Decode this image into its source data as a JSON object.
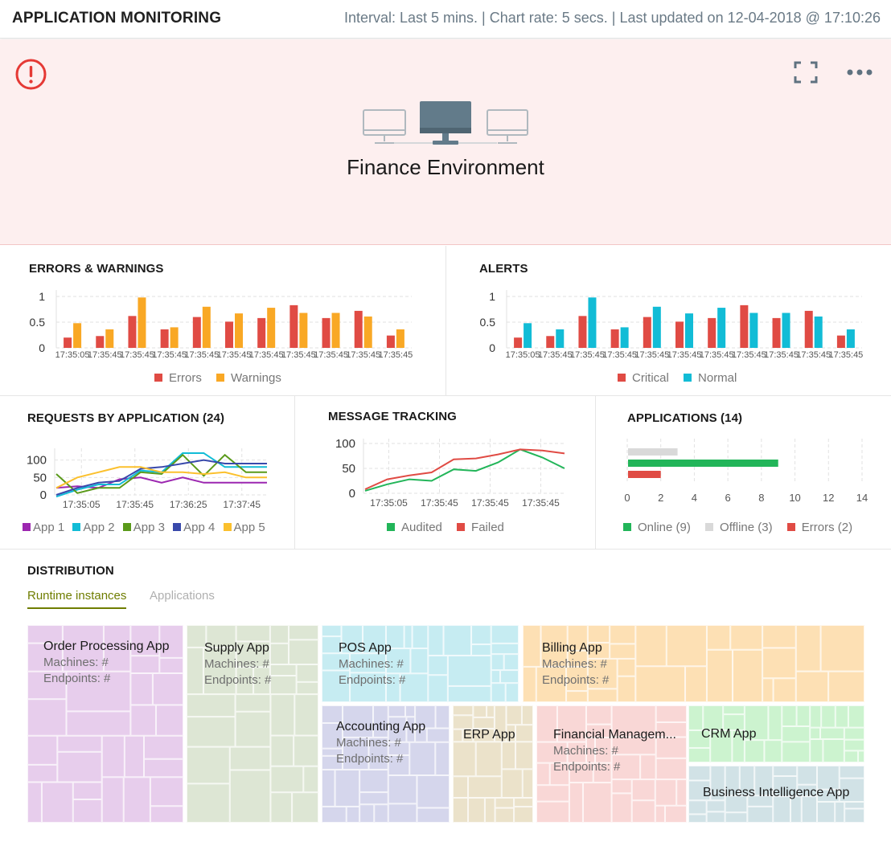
{
  "header": {
    "title": "APPLICATION MONITORING",
    "status": "Interval: Last 5 mins. | Chart rate: 5 secs. | Last updated on 12-04-2018 @ 17:10:26"
  },
  "hero": {
    "title": "Finance Environment",
    "alert_icon": "alert-circle-icon",
    "fullscreen_icon": "fullscreen-icon",
    "more_icon": "more-horizontal-icon",
    "background": "#fdefef"
  },
  "colors": {
    "red": "#e04b44",
    "orange": "#f9a825",
    "cyan": "#12bcd6",
    "green": "#22b559",
    "gray": "#d9d9d9",
    "purple": "#9c27b0",
    "app3": "#5a9a1a",
    "app4": "#3949ab",
    "app5": "#fbc02d",
    "olive": "#6f7d00"
  },
  "panels": {
    "errors_warnings": "ERRORS & WARNINGS",
    "alerts": "ALERTS",
    "requests": "REQUESTS BY APPLICATION (24)",
    "messages": "MESSAGE TRACKING",
    "applications": "APPLICATIONS (14)",
    "distribution": "DISTRIBUTION"
  },
  "chart_data": [
    {
      "id": "errors_warnings",
      "type": "bar",
      "categories": [
        "17:35:05",
        "17:35:45",
        "17:35:45",
        "17:35:45",
        "17:35:45",
        "17:35:45",
        "17:35:45",
        "17:35:45",
        "17:35:45",
        "17:35:45",
        "17:35:45"
      ],
      "ylim": [
        0,
        1
      ],
      "yticks": [
        "0",
        "0.5",
        "1"
      ],
      "series": [
        {
          "name": "Errors",
          "color": "#e04b44",
          "values": [
            0.2,
            0.23,
            0.62,
            0.36,
            0.6,
            0.51,
            0.58,
            0.83,
            0.58,
            0.72,
            0.24
          ]
        },
        {
          "name": "Warnings",
          "color": "#f9a825",
          "values": [
            0.48,
            0.36,
            0.98,
            0.4,
            0.8,
            0.67,
            0.78,
            0.68,
            0.68,
            0.61,
            0.36
          ]
        }
      ],
      "legend": "bottom"
    },
    {
      "id": "alerts",
      "type": "bar",
      "categories": [
        "17:35:05",
        "17:35:45",
        "17:35:45",
        "17:35:45",
        "17:35:45",
        "17:35:45",
        "17:35:45",
        "17:35:45",
        "17:35:45",
        "17:35:45",
        "17:35:45"
      ],
      "ylim": [
        0,
        1
      ],
      "yticks": [
        "0",
        "0.5",
        "1"
      ],
      "series": [
        {
          "name": "Critical",
          "color": "#e04b44",
          "values": [
            0.2,
            0.23,
            0.62,
            0.36,
            0.6,
            0.51,
            0.58,
            0.83,
            0.58,
            0.72,
            0.24
          ]
        },
        {
          "name": "Normal",
          "color": "#12bcd6",
          "values": [
            0.48,
            0.36,
            0.98,
            0.4,
            0.8,
            0.67,
            0.78,
            0.68,
            0.68,
            0.61,
            0.36
          ]
        }
      ],
      "legend": "bottom"
    },
    {
      "id": "requests",
      "type": "line",
      "xticks": [
        "17:35:05",
        "17:35:45",
        "17:36:25",
        "17:37:45"
      ],
      "ylim": [
        0,
        120
      ],
      "yticks": [
        "0",
        "50",
        "100"
      ],
      "x_count": 11,
      "series": [
        {
          "name": "App 1",
          "color": "#9c27b0",
          "values": [
            20,
            25,
            20,
            45,
            50,
            35,
            50,
            35,
            35,
            35,
            35
          ]
        },
        {
          "name": "App 2",
          "color": "#12bcd6",
          "values": [
            -5,
            15,
            30,
            30,
            70,
            65,
            120,
            120,
            80,
            80,
            80
          ]
        },
        {
          "name": "App 3",
          "color": "#5a9a1a",
          "values": [
            60,
            5,
            20,
            20,
            65,
            60,
            115,
            55,
            115,
            65,
            65
          ]
        },
        {
          "name": "App 4",
          "color": "#3949ab",
          "values": [
            0,
            20,
            35,
            40,
            75,
            80,
            90,
            100,
            90,
            90,
            90
          ]
        },
        {
          "name": "App 5",
          "color": "#fbc02d",
          "values": [
            20,
            50,
            65,
            80,
            80,
            65,
            65,
            60,
            65,
            50,
            50
          ]
        }
      ],
      "legend": "bottom"
    },
    {
      "id": "messages",
      "type": "line",
      "xticks": [
        "17:35:05",
        "17:35:45",
        "17:35:45",
        "17:35:45"
      ],
      "ylim": [
        0,
        100
      ],
      "yticks": [
        "0",
        "50",
        "100"
      ],
      "series": [
        {
          "name": "Audited",
          "color": "#22b559",
          "values": [
            5,
            18,
            28,
            25,
            48,
            45,
            62,
            88,
            72,
            50
          ]
        },
        {
          "name": "Failed",
          "color": "#e04b44",
          "values": [
            8,
            28,
            36,
            42,
            68,
            70,
            78,
            88,
            86,
            80
          ]
        }
      ],
      "legend": "bottom"
    },
    {
      "id": "applications",
      "type": "bar",
      "orientation": "horizontal",
      "xlim": [
        0,
        14
      ],
      "xticks": [
        "0",
        "2",
        "4",
        "6",
        "8",
        "10",
        "12",
        "14"
      ],
      "series": [
        {
          "name": "Online (9)",
          "color": "#22b559",
          "value": 9
        },
        {
          "name": "Offline (3)",
          "color": "#d9d9d9",
          "value": 3
        },
        {
          "name": "Errors (2)",
          "color": "#e04b44",
          "value": 2
        }
      ],
      "legend": "bottom"
    }
  ],
  "distribution": {
    "tabs": [
      {
        "label": "Runtime instances",
        "active": true
      },
      {
        "label": "Applications",
        "active": false
      }
    ],
    "tiles": [
      {
        "name": "Order Processing App",
        "machines": "Machines: #",
        "endpoints": "Endpoints: #",
        "color": "#e7cdec"
      },
      {
        "name": "Supply App",
        "machines": "Machines: #",
        "endpoints": "Endpoints: #",
        "color": "#dde6d4"
      },
      {
        "name": "POS App",
        "machines": "Machines: #",
        "endpoints": "Endpoints: #",
        "color": "#c6ecf2"
      },
      {
        "name": "Billing App",
        "machines": "Machines: #",
        "endpoints": "Endpoints: #",
        "color": "#fde0b4"
      },
      {
        "name": "Accounting App",
        "machines": "Machines: #",
        "endpoints": "Endpoints: #",
        "color": "#d5d6ec"
      },
      {
        "name": "ERP App",
        "machines": "",
        "endpoints": "",
        "color": "#ebe2ca"
      },
      {
        "name": "Financial Managem...",
        "machines": "Machines: #",
        "endpoints": "Endpoints: #",
        "color": "#f9d7d6"
      },
      {
        "name": "CRM App",
        "machines": "",
        "endpoints": "",
        "color": "#ccf3cf"
      },
      {
        "name": "Business Intelligence App",
        "machines": "",
        "endpoints": "",
        "color": "#d1e2e6"
      }
    ]
  }
}
